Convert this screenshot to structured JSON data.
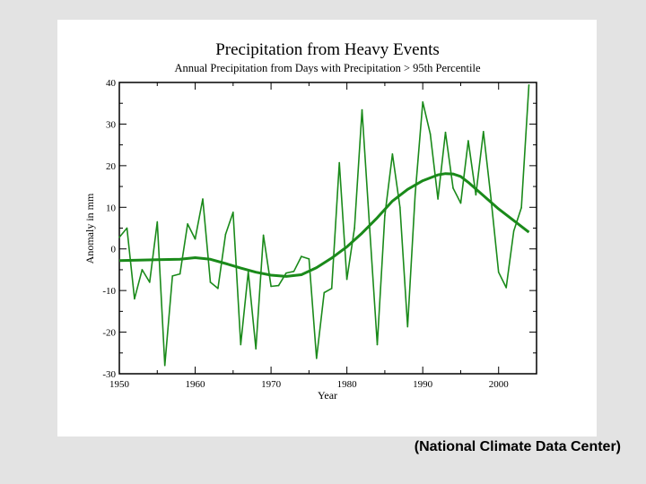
{
  "caption": "(National Climate Data Center)",
  "chart_data": {
    "type": "line",
    "title": "Precipitation from Heavy Events",
    "subtitle": "Annual Precipitation from Days with Precipitation > 95th Percentile",
    "xlabel": "Year",
    "ylabel": "Anomaly in mm",
    "xlim": [
      1950,
      2005
    ],
    "ylim": [
      -30,
      40
    ],
    "xticks": [
      1950,
      1960,
      1970,
      1980,
      1990,
      2000
    ],
    "yticks": [
      40,
      30,
      20,
      10,
      0,
      -10,
      -20,
      -30
    ],
    "grid": false,
    "color": "#1a8a1a",
    "series": [
      {
        "x": [
          1950,
          1951,
          1952,
          1953,
          1954,
          1955,
          1956,
          1957,
          1958,
          1959,
          1960,
          1961,
          1962,
          1963,
          1964,
          1965,
          1966,
          1967,
          1968,
          1969,
          1970,
          1971,
          1972,
          1973,
          1974,
          1975,
          1976,
          1977,
          1978,
          1979,
          1980,
          1981,
          1982,
          1983,
          1984,
          1985,
          1986,
          1987,
          1988,
          1989,
          1990,
          1991,
          1992,
          1993,
          1994,
          1995,
          1996,
          1997,
          1998,
          1999,
          2000,
          2001,
          2002,
          2003,
          2004
        ],
        "y": [
          2.8,
          5,
          -12,
          -5,
          -8,
          6.5,
          -28,
          -6.5,
          -6,
          6,
          2.4,
          12,
          -8,
          -9.5,
          3.5,
          8.8,
          -23,
          -5.5,
          -24,
          3.3,
          -9,
          -8.8,
          -5.8,
          -5.4,
          -1.8,
          -2.4,
          -26.3,
          -10.5,
          -9.5,
          20.7,
          -7.3,
          5,
          33.4,
          5,
          -23,
          8,
          22.8,
          10,
          -18.7,
          13,
          35.3,
          27.6,
          12,
          28,
          14.6,
          11,
          26,
          13,
          28.2,
          12,
          -5.6,
          -9.3,
          4.3,
          9.9,
          39.4
        ]
      },
      {
        "x": [
          1950,
          1955,
          1958,
          1960,
          1962,
          1964,
          1966,
          1968,
          1970,
          1972,
          1974,
          1976,
          1978,
          1980,
          1982,
          1984,
          1986,
          1988,
          1990,
          1992,
          1993,
          1994,
          1995,
          1996,
          1998,
          2000,
          2002,
          2004
        ],
        "y": [
          -2.8,
          -2.6,
          -2.5,
          -2.1,
          -2.5,
          -3.5,
          -4.6,
          -5.6,
          -6.3,
          -6.6,
          -6.2,
          -4.5,
          -2.2,
          0.5,
          3.8,
          7.5,
          11.5,
          14.3,
          16.4,
          17.8,
          18.1,
          18,
          17.4,
          16,
          12.8,
          9.6,
          6.8,
          4
        ]
      }
    ]
  }
}
